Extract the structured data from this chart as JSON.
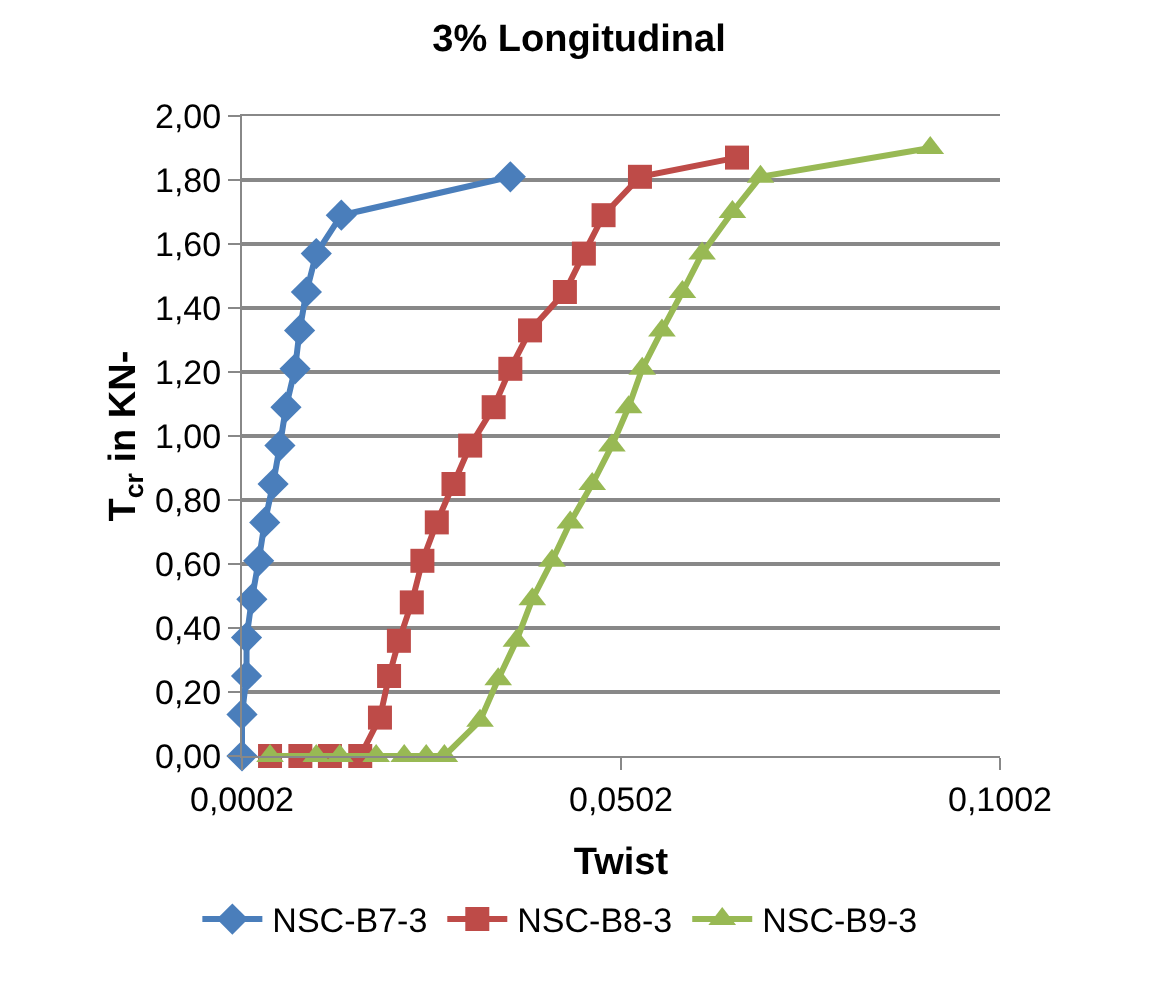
{
  "chart_data": {
    "type": "line",
    "title": "3% Longitudinal",
    "xlabel": "Twist",
    "ylabel": "T$_{cr}$ in KN-",
    "xlim": [
      0.0002,
      0.1002
    ],
    "xticks": [
      {
        "value": 0.0002,
        "label": "0,0002"
      },
      {
        "value": 0.0502,
        "label": "0,0502"
      },
      {
        "value": 0.1002,
        "label": "0,1002"
      }
    ],
    "ylim": [
      0,
      2
    ],
    "yticks": [
      {
        "value": 0,
        "label": "0,00"
      },
      {
        "value": 0.2,
        "label": "0,20"
      },
      {
        "value": 0.4,
        "label": "0,40"
      },
      {
        "value": 0.6,
        "label": "0,60"
      },
      {
        "value": 0.8,
        "label": "0,80"
      },
      {
        "value": 1.0,
        "label": "1,00"
      },
      {
        "value": 1.2,
        "label": "1,20"
      },
      {
        "value": 1.4,
        "label": "1,40"
      },
      {
        "value": 1.6,
        "label": "1,60"
      },
      {
        "value": 1.8,
        "label": "1,80"
      },
      {
        "value": 2.0,
        "label": "2,00"
      }
    ],
    "grid": "y",
    "legend": "bottom",
    "series": [
      {
        "name": "NSC-B7-3",
        "color": "#4a7ebb",
        "marker": "diamond",
        "x": [
          0.0002,
          0.0002,
          0.0008,
          0.0008,
          0.0015,
          0.0024,
          0.0032,
          0.0043,
          0.0052,
          0.006,
          0.0072,
          0.0078,
          0.0087,
          0.01,
          0.0133,
          0.0356
        ],
        "values": [
          0,
          0.13,
          0.25,
          0.37,
          0.49,
          0.61,
          0.73,
          0.85,
          0.97,
          1.09,
          1.21,
          1.33,
          1.45,
          1.57,
          1.69,
          1.81
        ]
      },
      {
        "name": "NSC-B8-3",
        "color": "#be4b48",
        "marker": "square",
        "x": [
          0.0039,
          0.0079,
          0.0118,
          0.0158,
          0.0184,
          0.0196,
          0.0209,
          0.0226,
          0.024,
          0.0259,
          0.0281,
          0.0303,
          0.0334,
          0.0356,
          0.0382,
          0.0428,
          0.0453,
          0.0479,
          0.0527,
          0.0655
        ],
        "values": [
          0,
          0,
          0,
          0,
          0.12,
          0.25,
          0.36,
          0.48,
          0.61,
          0.73,
          0.85,
          0.97,
          1.09,
          1.21,
          1.33,
          1.45,
          1.57,
          1.69,
          1.81,
          1.87
        ]
      },
      {
        "name": "NSC-B9-3",
        "color": "#98b954",
        "marker": "triangle",
        "x": [
          0.0039,
          0.01,
          0.0131,
          0.0179,
          0.0216,
          0.0245,
          0.0269,
          0.0316,
          0.034,
          0.0364,
          0.0385,
          0.0411,
          0.0435,
          0.0464,
          0.049,
          0.0512,
          0.053,
          0.0556,
          0.0583,
          0.0609,
          0.0649,
          0.0686,
          0.091
        ],
        "values": [
          0,
          0,
          0,
          0,
          0,
          0,
          0,
          0.11,
          0.24,
          0.36,
          0.49,
          0.61,
          0.73,
          0.85,
          0.97,
          1.09,
          1.21,
          1.33,
          1.45,
          1.57,
          1.7,
          1.81,
          1.9
        ]
      }
    ]
  }
}
